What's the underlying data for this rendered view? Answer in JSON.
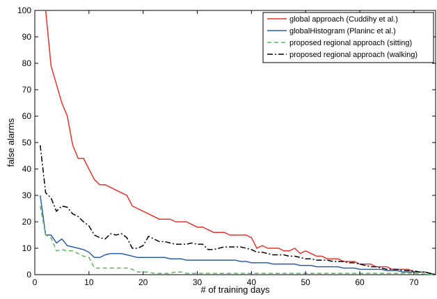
{
  "chart_data": {
    "type": "line",
    "title": "",
    "xlabel": "# of training days",
    "ylabel": "false alarms",
    "xlim": [
      0,
      74
    ],
    "ylim": [
      0,
      100
    ],
    "xticks": [
      "0",
      "10",
      "20",
      "30",
      "40",
      "50",
      "60",
      "70"
    ],
    "yticks": [
      "0",
      "10",
      "20",
      "30",
      "40",
      "50",
      "60",
      "70",
      "80",
      "90",
      "100"
    ],
    "grid": false,
    "legend_position": "top-right",
    "series": [
      {
        "name": "global approach (Cuddihy et al.)",
        "color": "#e8322a",
        "dash": "solid",
        "x": [
          2,
          3,
          4,
          5,
          6,
          7,
          8,
          9,
          10,
          11,
          12,
          13,
          14,
          15,
          16,
          17,
          18,
          19,
          20,
          21,
          22,
          23,
          24,
          25,
          26,
          27,
          28,
          29,
          30,
          31,
          32,
          33,
          34,
          35,
          36,
          37,
          38,
          39,
          40,
          41,
          42,
          43,
          44,
          45,
          46,
          47,
          48,
          49,
          50,
          51,
          52,
          53,
          54,
          55,
          56,
          57,
          58,
          59,
          60,
          61,
          62,
          63,
          64,
          65,
          66,
          67,
          68,
          69,
          70,
          71,
          72,
          73,
          74
        ],
        "y": [
          100,
          79,
          72,
          65,
          60,
          49,
          44,
          44,
          40,
          36,
          34,
          34,
          33,
          32,
          31,
          30,
          26,
          25,
          24,
          23,
          22,
          21,
          21,
          21,
          20,
          20,
          20,
          19,
          18,
          18,
          17,
          16,
          16,
          16,
          15,
          15,
          15,
          15,
          14,
          10,
          11,
          10,
          10,
          10,
          9,
          9,
          10,
          8,
          9,
          8,
          7,
          7,
          6,
          6,
          6,
          5,
          5,
          5,
          4,
          4,
          4,
          3,
          3,
          3,
          2,
          2,
          2,
          2,
          1,
          1,
          1,
          0.5,
          0
        ]
      },
      {
        "name": "globalHistogram (Planinc et al.)",
        "color": "#2a5db0",
        "dash": "solid",
        "x": [
          1,
          2,
          3,
          4,
          5,
          6,
          7,
          8,
          9,
          10,
          11,
          12,
          13,
          14,
          15,
          16,
          17,
          18,
          19,
          20,
          21,
          22,
          23,
          24,
          25,
          26,
          27,
          28,
          29,
          30,
          31,
          32,
          33,
          34,
          35,
          36,
          37,
          38,
          39,
          40,
          41,
          42,
          43,
          44,
          45,
          46,
          47,
          48,
          49,
          50,
          51,
          52,
          53,
          54,
          55,
          56,
          57,
          58,
          59,
          60,
          61,
          62,
          63,
          64,
          65,
          66,
          67,
          68,
          69,
          70,
          71,
          72,
          73,
          74
        ],
        "y": [
          30,
          15,
          15,
          12,
          13.5,
          11,
          10.5,
          10,
          9.5,
          8.5,
          6.5,
          6.5,
          7.5,
          8,
          8,
          8,
          7.5,
          7,
          6.5,
          6.5,
          6.5,
          6.5,
          6.5,
          6.5,
          6,
          6,
          6,
          5.5,
          5.5,
          5.5,
          5.5,
          5.5,
          5.5,
          5.5,
          5.5,
          5.5,
          5.5,
          5,
          5,
          4.5,
          4.5,
          4.5,
          4.5,
          4,
          4,
          4,
          4,
          4,
          3.5,
          3.5,
          3.5,
          3,
          3,
          3,
          3,
          3,
          2.5,
          2.5,
          2.5,
          2,
          2,
          2,
          2,
          2,
          1.5,
          1.5,
          1.5,
          1,
          1,
          1,
          1,
          1,
          0.5,
          0
        ]
      },
      {
        "name": "proposed regional approach (sitting)",
        "color": "#5cb85c",
        "dash": "dashed",
        "x": [
          1,
          2,
          3,
          4,
          5,
          6,
          7,
          8,
          9,
          10,
          11,
          12,
          13,
          14,
          15,
          16,
          17,
          18,
          19,
          20,
          21,
          22,
          23,
          24,
          25,
          26,
          27,
          28,
          29,
          30,
          31,
          32,
          33,
          34,
          35,
          36,
          40,
          45,
          50,
          55,
          60,
          65,
          70,
          74
        ],
        "y": [
          26,
          15,
          14,
          9,
          9.5,
          9,
          9,
          8,
          7,
          6.5,
          2.5,
          2.5,
          2.5,
          2.5,
          2.5,
          2.5,
          2.5,
          2,
          1,
          1,
          1,
          0.5,
          0.5,
          0.5,
          0.5,
          1,
          1,
          0.5,
          0.5,
          0.5,
          0.5,
          0.5,
          0.5,
          0.5,
          0.5,
          0.5,
          0.5,
          0.5,
          0.5,
          0.5,
          0.5,
          0.5,
          0.5,
          0
        ]
      },
      {
        "name": "proposed regional approach (walking)",
        "color": "#000000",
        "dash": "dashdot",
        "x": [
          1,
          2,
          3,
          4,
          5,
          6,
          7,
          8,
          9,
          10,
          11,
          12,
          13,
          14,
          15,
          16,
          17,
          18,
          19,
          20,
          21,
          22,
          23,
          24,
          25,
          26,
          27,
          28,
          29,
          30,
          31,
          32,
          33,
          34,
          35,
          36,
          37,
          38,
          39,
          40,
          41,
          42,
          43,
          44,
          45,
          46,
          47,
          48,
          49,
          50,
          51,
          52,
          53,
          54,
          55,
          56,
          57,
          58,
          59,
          60,
          61,
          62,
          63,
          64,
          65,
          66,
          67,
          68,
          69,
          70,
          71,
          72,
          73,
          74
        ],
        "y": [
          49,
          31,
          29,
          24,
          26,
          25.5,
          23,
          22,
          20,
          18.5,
          15,
          14,
          13.5,
          15.5,
          15,
          15.5,
          14,
          10,
          10,
          11,
          14.5,
          13.5,
          12.5,
          12.5,
          12,
          11.5,
          11.5,
          11.5,
          12,
          11.5,
          11.5,
          9.5,
          9.5,
          10,
          10.5,
          10.5,
          10.5,
          10.5,
          10,
          9.5,
          8.5,
          8.5,
          8,
          7.5,
          7.5,
          7.5,
          7,
          7,
          6.5,
          6,
          6,
          5.5,
          5.5,
          5.5,
          5,
          5,
          5,
          4.5,
          4.5,
          4,
          3.5,
          3,
          3,
          2.5,
          2,
          2,
          2,
          1.5,
          1.5,
          1.5,
          1,
          1,
          0.5,
          0
        ]
      }
    ]
  }
}
